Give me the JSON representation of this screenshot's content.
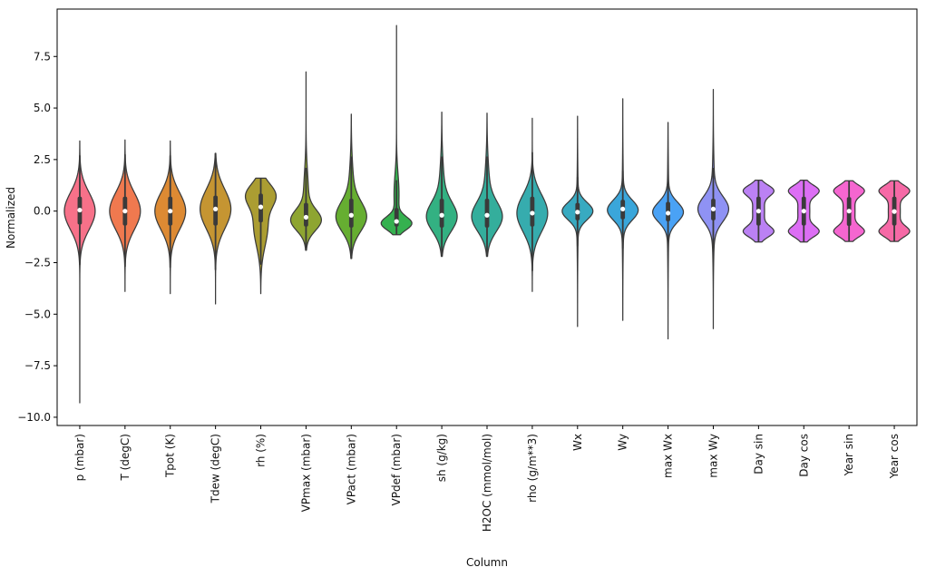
{
  "chart_data": {
    "type": "violin",
    "title": "",
    "xlabel": "Column",
    "ylabel": "Normalized",
    "ylim": [
      -10.4,
      9.8
    ],
    "yticks": [
      -10.0,
      -7.5,
      -5.0,
      -2.5,
      0.0,
      2.5,
      5.0,
      7.5
    ],
    "ytick_labels": [
      "−10.0",
      "−7.5",
      "−5.0",
      "−2.5",
      "0.0",
      "2.5",
      "5.0",
      "7.5"
    ],
    "grid": false,
    "legend": "none",
    "axis_color": "#000000",
    "edge_color": "#3b3b3b",
    "inner_color": "#3a3a3a",
    "median_dot_color": "#ffffff",
    "background_color": "#ffffff",
    "categories": [
      "p (mbar)",
      "T (degC)",
      "Tpot (K)",
      "Tdew (degC)",
      "rh (%)",
      "VPmax (mbar)",
      "VPact (mbar)",
      "VPdef (mbar)",
      "sh (g/kg)",
      "H2OC (mmol/mol)",
      "rho (g/m**3)",
      "Wx",
      "Wy",
      "max Wx",
      "max Wy",
      "Day sin",
      "Day cos",
      "Year sin",
      "Year cos"
    ],
    "colors": [
      "#f77189",
      "#f0794f",
      "#dd8a33",
      "#c59532",
      "#ab9d32",
      "#8ea531",
      "#66ae31",
      "#35b14f",
      "#33b182",
      "#34ae9c",
      "#36acae",
      "#38aac1",
      "#3aa6da",
      "#4aa2f5",
      "#8f92f4",
      "#bb81f4",
      "#dc6ef4",
      "#f566d0",
      "#f669a6"
    ],
    "series": [
      {
        "name": "p (mbar)",
        "min": -9.3,
        "max": 3.4,
        "q1": -0.65,
        "median": 0.05,
        "q3": 0.7,
        "whisker_lo": -2.6,
        "whisker_hi": 2.7,
        "components": [
          {
            "mu": 0.0,
            "sigma": 0.9,
            "weight": 1.0
          }
        ]
      },
      {
        "name": "T (degC)",
        "min": -3.9,
        "max": 3.45,
        "q1": -0.7,
        "median": 0.0,
        "q3": 0.7,
        "whisker_lo": -2.7,
        "whisker_hi": 2.75,
        "components": [
          {
            "mu": 0.0,
            "sigma": 0.9,
            "weight": 1.0
          }
        ]
      },
      {
        "name": "Tpot (K)",
        "min": -4.0,
        "max": 3.4,
        "q1": -0.7,
        "median": 0.0,
        "q3": 0.7,
        "whisker_lo": -2.75,
        "whisker_hi": 2.7,
        "components": [
          {
            "mu": 0.0,
            "sigma": 0.9,
            "weight": 1.0
          }
        ]
      },
      {
        "name": "Tdew (degC)",
        "min": -4.5,
        "max": 2.8,
        "q1": -0.7,
        "median": 0.1,
        "q3": 0.75,
        "whisker_lo": -2.85,
        "whisker_hi": 2.8,
        "components": [
          {
            "mu": 0.1,
            "sigma": 0.95,
            "weight": 1.0
          }
        ]
      },
      {
        "name": "rh (%)",
        "min": -4.0,
        "max": 1.6,
        "q1": -0.55,
        "median": 0.2,
        "q3": 0.85,
        "whisker_lo": -2.6,
        "whisker_hi": 1.6,
        "components": [
          {
            "mu": 0.8,
            "sigma": 0.55,
            "weight": 0.5
          },
          {
            "mu": -0.7,
            "sigma": 1.0,
            "weight": 0.5
          }
        ]
      },
      {
        "name": "VPmax (mbar)",
        "min": -1.9,
        "max": 6.75,
        "q1": -0.75,
        "median": -0.3,
        "q3": 0.4,
        "whisker_lo": -1.9,
        "whisker_hi": 2.1,
        "components": [
          {
            "mu": -0.45,
            "sigma": 0.5,
            "weight": 0.7
          },
          {
            "mu": 0.7,
            "sigma": 1.2,
            "weight": 0.3
          }
        ]
      },
      {
        "name": "VPact (mbar)",
        "min": -2.3,
        "max": 4.7,
        "q1": -0.8,
        "median": -0.2,
        "q3": 0.6,
        "whisker_lo": -2.3,
        "whisker_hi": 2.65,
        "components": [
          {
            "mu": -0.3,
            "sigma": 0.7,
            "weight": 0.75
          },
          {
            "mu": 0.8,
            "sigma": 1.3,
            "weight": 0.25
          }
        ]
      },
      {
        "name": "VPdef (mbar)",
        "min": -1.15,
        "max": 9.0,
        "q1": -0.75,
        "median": -0.5,
        "q3": 0.15,
        "whisker_lo": -1.15,
        "whisker_hi": 1.5,
        "components": [
          {
            "mu": -0.6,
            "sigma": 0.32,
            "weight": 0.65
          },
          {
            "mu": 0.8,
            "sigma": 1.0,
            "weight": 0.35
          }
        ]
      },
      {
        "name": "sh (g/kg)",
        "min": -2.2,
        "max": 4.8,
        "q1": -0.8,
        "median": -0.2,
        "q3": 0.6,
        "whisker_lo": -2.2,
        "whisker_hi": 2.65,
        "components": [
          {
            "mu": -0.3,
            "sigma": 0.7,
            "weight": 0.75
          },
          {
            "mu": 0.9,
            "sigma": 1.3,
            "weight": 0.25
          }
        ]
      },
      {
        "name": "H2OC (mmol/mol)",
        "min": -2.2,
        "max": 4.75,
        "q1": -0.8,
        "median": -0.2,
        "q3": 0.6,
        "whisker_lo": -2.2,
        "whisker_hi": 2.65,
        "components": [
          {
            "mu": -0.3,
            "sigma": 0.7,
            "weight": 0.75
          },
          {
            "mu": 0.9,
            "sigma": 1.3,
            "weight": 0.25
          }
        ]
      },
      {
        "name": "rho (g/m**3)",
        "min": -3.9,
        "max": 4.5,
        "q1": -0.75,
        "median": -0.1,
        "q3": 0.7,
        "whisker_lo": -2.9,
        "whisker_hi": 2.85,
        "components": [
          {
            "mu": -0.1,
            "sigma": 0.9,
            "weight": 1.0
          }
        ]
      },
      {
        "name": "Wx",
        "min": -5.6,
        "max": 4.6,
        "q1": -0.45,
        "median": -0.05,
        "q3": 0.4,
        "whisker_lo": -1.7,
        "whisker_hi": 1.65,
        "components": [
          {
            "mu": 0.0,
            "sigma": 0.42,
            "weight": 0.85
          },
          {
            "mu": 0.0,
            "sigma": 1.6,
            "weight": 0.15
          }
        ]
      },
      {
        "name": "Wy",
        "min": -5.3,
        "max": 5.45,
        "q1": -0.4,
        "median": 0.1,
        "q3": 0.55,
        "whisker_lo": -1.8,
        "whisker_hi": 1.95,
        "components": [
          {
            "mu": 0.05,
            "sigma": 0.48,
            "weight": 0.85
          },
          {
            "mu": 0.0,
            "sigma": 1.7,
            "weight": 0.15
          }
        ]
      },
      {
        "name": "max Wx",
        "min": -6.2,
        "max": 4.3,
        "q1": -0.5,
        "median": -0.1,
        "q3": 0.45,
        "whisker_lo": -1.9,
        "whisker_hi": 1.85,
        "components": [
          {
            "mu": -0.05,
            "sigma": 0.48,
            "weight": 0.85
          },
          {
            "mu": 0.0,
            "sigma": 1.8,
            "weight": 0.15
          }
        ]
      },
      {
        "name": "max Wy",
        "min": -5.7,
        "max": 5.9,
        "q1": -0.45,
        "median": 0.1,
        "q3": 0.6,
        "whisker_lo": -2.0,
        "whisker_hi": 2.1,
        "components": [
          {
            "mu": 0.1,
            "sigma": 0.6,
            "weight": 0.78
          },
          {
            "mu": 0.3,
            "sigma": 1.7,
            "weight": 0.22
          }
        ]
      },
      {
        "name": "Day sin",
        "min": -1.5,
        "max": 1.5,
        "q1": -0.7,
        "median": 0.0,
        "q3": 0.7,
        "whisker_lo": -1.5,
        "whisker_hi": 1.5,
        "components": [
          {
            "mu": -1.0,
            "sigma": 0.26,
            "weight": 0.27
          },
          {
            "mu": 1.0,
            "sigma": 0.26,
            "weight": 0.27
          },
          {
            "mu": 0.0,
            "sigma": 0.9,
            "weight": 0.46
          }
        ]
      },
      {
        "name": "Day cos",
        "min": -1.5,
        "max": 1.5,
        "q1": -0.7,
        "median": 0.0,
        "q3": 0.7,
        "whisker_lo": -1.5,
        "whisker_hi": 1.5,
        "components": [
          {
            "mu": -1.0,
            "sigma": 0.26,
            "weight": 0.27
          },
          {
            "mu": 1.0,
            "sigma": 0.26,
            "weight": 0.27
          },
          {
            "mu": 0.0,
            "sigma": 0.9,
            "weight": 0.46
          }
        ]
      },
      {
        "name": "Year sin",
        "min": -1.47,
        "max": 1.47,
        "q1": -0.72,
        "median": 0.0,
        "q3": 0.68,
        "whisker_lo": -1.47,
        "whisker_hi": 1.47,
        "components": [
          {
            "mu": -1.0,
            "sigma": 0.26,
            "weight": 0.27
          },
          {
            "mu": 1.0,
            "sigma": 0.26,
            "weight": 0.27
          },
          {
            "mu": 0.0,
            "sigma": 0.9,
            "weight": 0.46
          }
        ]
      },
      {
        "name": "Year cos",
        "min": -1.47,
        "max": 1.47,
        "q1": -0.7,
        "median": -0.02,
        "q3": 0.7,
        "whisker_lo": -1.47,
        "whisker_hi": 1.47,
        "components": [
          {
            "mu": -1.0,
            "sigma": 0.26,
            "weight": 0.27
          },
          {
            "mu": 1.0,
            "sigma": 0.26,
            "weight": 0.27
          },
          {
            "mu": 0.0,
            "sigma": 0.9,
            "weight": 0.46
          }
        ]
      }
    ]
  }
}
